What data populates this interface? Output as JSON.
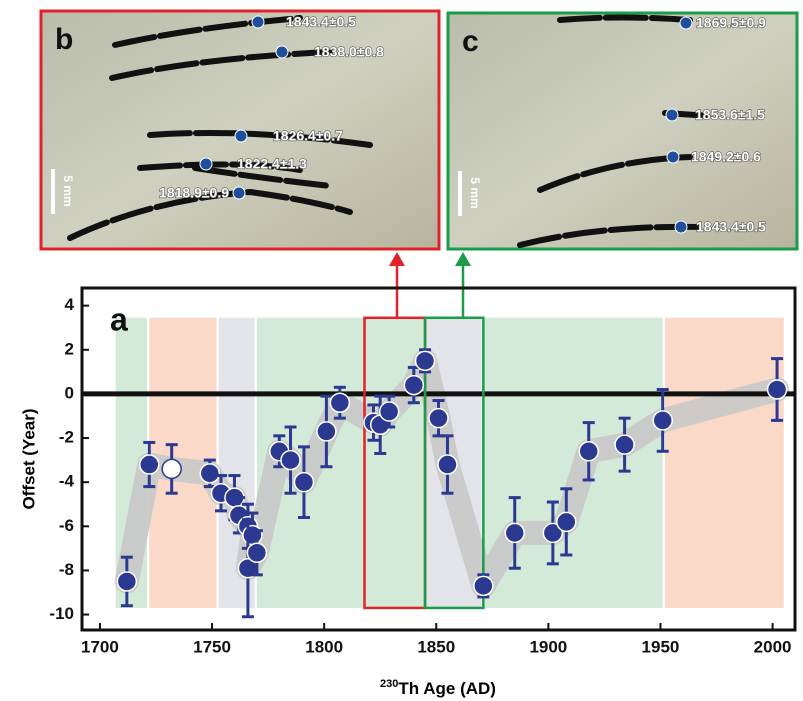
{
  "chart_data": {
    "type": "errorbar-scatter",
    "panel_label": "a",
    "x_label": {
      "superscript": "230",
      "text": "Th Age (AD)"
    },
    "y_label": "Offset (Year)",
    "xlim": [
      1692,
      2010
    ],
    "ylim": [
      -10.7,
      4.8
    ],
    "xticks": [
      1700,
      1750,
      1800,
      1850,
      1900,
      1950,
      2000
    ],
    "yticks": [
      -10,
      -8,
      -6,
      -4,
      -2,
      0,
      2,
      4
    ],
    "x": [
      1712,
      1722,
      1732,
      1749,
      1754,
      1760,
      1762,
      1766,
      1768,
      1766,
      1770,
      1780,
      1785,
      1791,
      1801,
      1807,
      1822,
      1825,
      1829,
      1840,
      1845,
      1851,
      1855,
      1871,
      1885,
      1902,
      1908,
      1918,
      1934,
      1951,
      2002
    ],
    "values": [
      -8.5,
      -3.2,
      -3.4,
      -3.6,
      -4.5,
      -4.7,
      -5.5,
      -6.0,
      -6.4,
      -7.9,
      -7.2,
      -2.6,
      -3.0,
      -4.0,
      -1.7,
      -0.4,
      -1.3,
      -1.4,
      -0.8,
      0.4,
      1.5,
      -1.1,
      -3.2,
      -8.7,
      -6.3,
      -6.3,
      -5.8,
      -2.6,
      -2.3,
      -1.2,
      0.2
    ],
    "errors": [
      1.1,
      1.0,
      1.1,
      0.6,
      0.8,
      1.0,
      0.8,
      1.0,
      1.0,
      2.2,
      1.0,
      0.7,
      1.5,
      1.6,
      1.6,
      0.7,
      0.8,
      1.3,
      0.7,
      0.8,
      0.5,
      0.8,
      1.3,
      0.5,
      1.6,
      1.4,
      1.5,
      1.3,
      1.2,
      1.4,
      1.4
    ],
    "point_fill": [
      "#2b3990",
      "#2b3990",
      "#ffffff",
      "#2b3990",
      "#2b3990",
      "#2b3990",
      "#2b3990",
      "#2b3990",
      "#2b3990",
      "#2b3990",
      "#2b3990",
      "#2b3990",
      "#2b3990",
      "#2b3990",
      "#2b3990",
      "#2b3990",
      "#2b3990",
      "#2b3990",
      "#2b3990",
      "#2b3990",
      "#2b3990",
      "#2b3990",
      "#2b3990",
      "#2b3990",
      "#2b3990",
      "#2b3990",
      "#2b3990",
      "#2b3990",
      "#2b3990",
      "#2b3990",
      "#2b3990"
    ],
    "color": "#2b3990",
    "envelope_color": "#c8c8c8",
    "periods": [
      {
        "from": 1707,
        "to": 1721,
        "color": "#d3ead9"
      },
      {
        "from": 1722,
        "to": 1752,
        "color": "#fbd9c8"
      },
      {
        "from": 1753,
        "to": 1769,
        "color": "#e3e3ea"
      },
      {
        "from": 1770,
        "to": 1845,
        "color": "#d3ead9"
      },
      {
        "from": 1845,
        "to": 1870,
        "color": "#e3e3ea"
      },
      {
        "from": 1871,
        "to": 1951,
        "color": "#d3ead9"
      },
      {
        "from": 1952,
        "to": 2005,
        "color": "#fbd9c8"
      }
    ],
    "period_ylim": [
      -9.7,
      3.45
    ],
    "highlights": [
      {
        "from": 1818,
        "to": 1845,
        "color": "#e0232a"
      },
      {
        "from": 1845,
        "to": 1871,
        "color": "#1a9c48"
      }
    ],
    "zero_line": 0
  },
  "panels": [
    {
      "label": "b",
      "border": "#e0232a",
      "scale": "5 mm",
      "annotations": [
        "1843.4±0.5",
        "1838.0±0.8",
        "1826.4±0.7",
        "1822.4±1.3",
        "1818.9±0.9"
      ]
    },
    {
      "label": "c",
      "border": "#1a9c48",
      "scale": "5 mm",
      "annotations": [
        "1869.5±0.9",
        "1853.6±1.5",
        "1849.2±0.6",
        "1843.4±0.5"
      ]
    }
  ]
}
